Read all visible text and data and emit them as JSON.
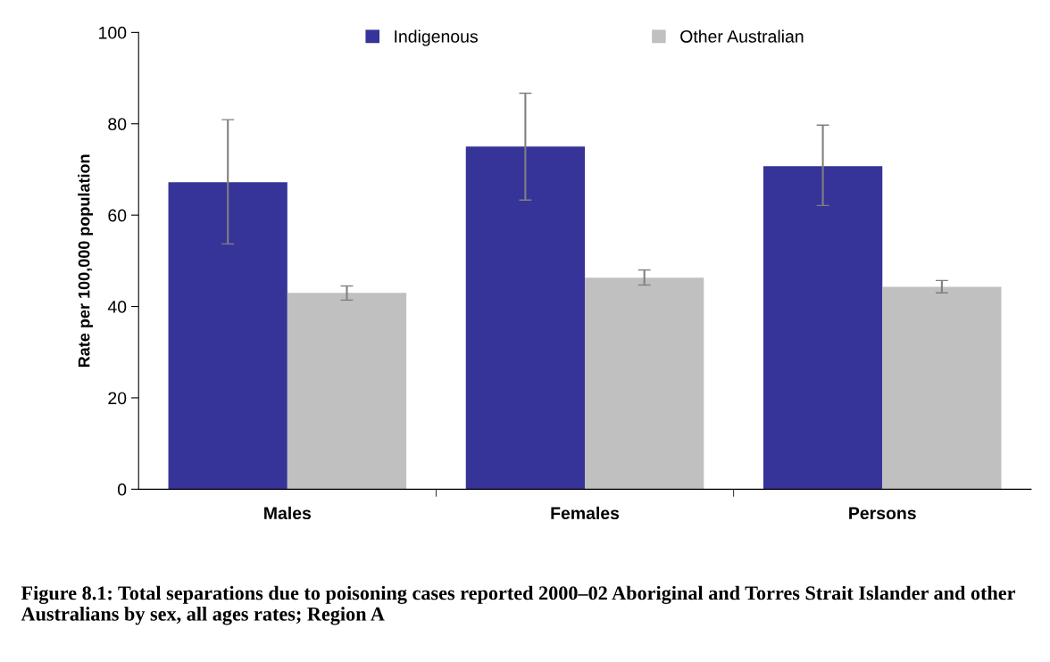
{
  "chart_data": {
    "type": "bar",
    "title": "Figure 8.1: Total separations due to poisoning cases reported 2000–02 Aboriginal and Torres Strait Islander and other Australians by sex, all ages rates; Region A",
    "ylabel": "Rate per 100,000 population",
    "categories": [
      "Males",
      "Females",
      "Persons"
    ],
    "series": [
      {
        "name": "Indigenous",
        "color": "#363399",
        "values": [
          67.2,
          75.0,
          70.7
        ],
        "errors": [
          [
            53.7,
            80.9
          ],
          [
            63.3,
            86.7
          ],
          [
            62.1,
            79.7
          ]
        ]
      },
      {
        "name": "Other Australian",
        "color": "#c0c0c0",
        "values": [
          43.0,
          46.3,
          44.3
        ],
        "errors": [
          [
            41.4,
            44.5
          ],
          [
            44.7,
            48.0
          ],
          [
            43.0,
            45.7
          ]
        ]
      }
    ],
    "ylim": [
      0,
      100
    ],
    "yticks": [
      0,
      20,
      40,
      60,
      80,
      100
    ],
    "legend": "top",
    "grid": false
  }
}
